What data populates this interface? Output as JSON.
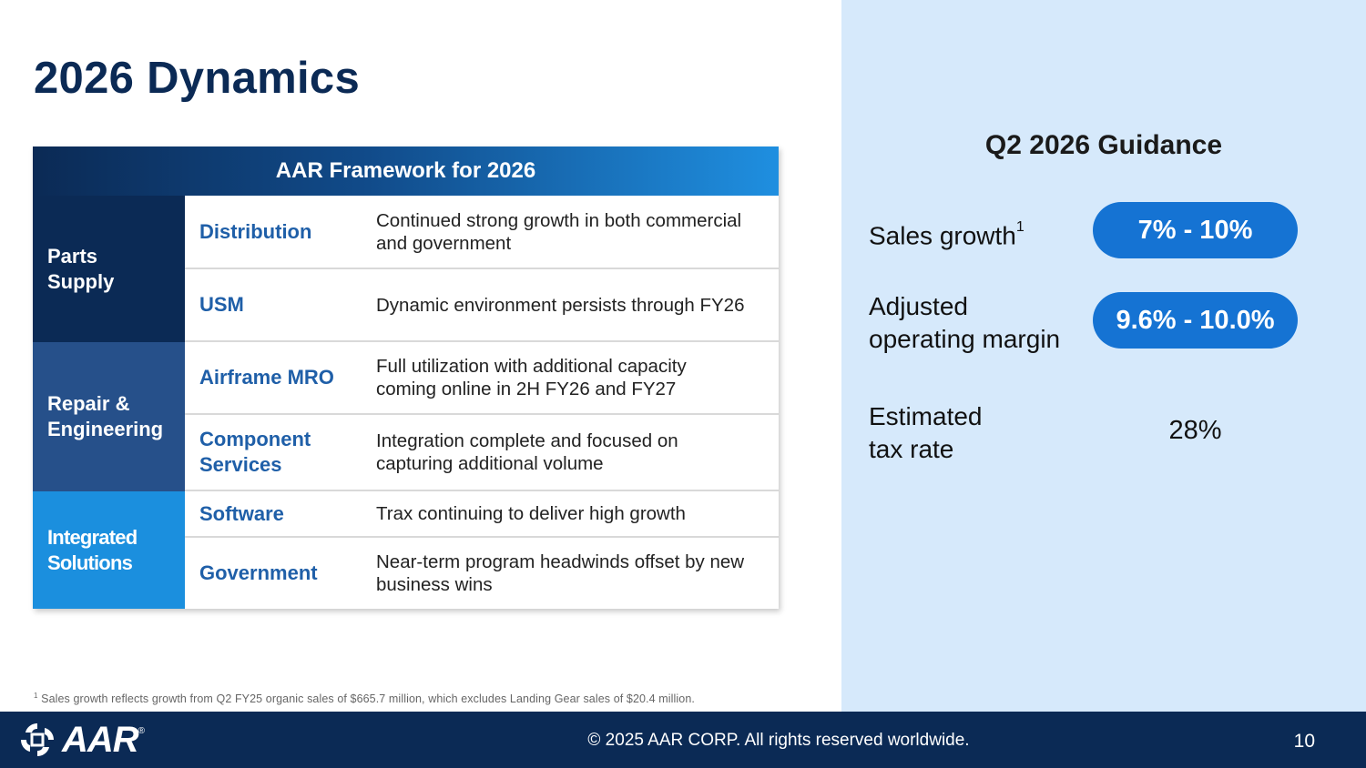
{
  "slide": {
    "title": "2026 Dynamics",
    "page_number": "10"
  },
  "framework": {
    "header": "AAR Framework for 2026",
    "groups": [
      {
        "label": "Parts Supply",
        "rows": [
          {
            "name": "Distribution",
            "description": "Continued strong growth in both commercial and government"
          },
          {
            "name": "USM",
            "description": "Dynamic environment persists through FY26"
          }
        ]
      },
      {
        "label": "Repair & Engineering",
        "rows": [
          {
            "name": "Airframe MRO",
            "description": "Full utilization with additional capacity coming online in 2H FY26 and FY27"
          },
          {
            "name": "Component Services",
            "description": "Integration complete and focused on capturing additional volume"
          }
        ]
      },
      {
        "label": "Integrated Solutions",
        "rows": [
          {
            "name": "Software",
            "description": "Trax continuing to deliver high growth"
          },
          {
            "name": "Government",
            "description": "Near-term program headwinds offset by new business wins"
          }
        ]
      }
    ]
  },
  "guidance": {
    "title": "Q2 2026 Guidance",
    "items": [
      {
        "label": "Sales growth",
        "superscript": "1",
        "value": "7% - 10%"
      },
      {
        "label": "Adjusted operating margin",
        "value": "9.6% - 10.0%"
      },
      {
        "label": "Estimated tax rate",
        "value": "28%"
      }
    ]
  },
  "footnote": {
    "marker": "1",
    "text": "Sales growth reflects growth from Q2 FY25 organic sales of $665.7 million, which excludes Landing Gear sales of $20.4 million."
  },
  "footer": {
    "logo_text": "AAR",
    "logo_registered": "®",
    "copyright": "© 2025 AAR CORP. All rights reserved worldwide."
  },
  "colors": {
    "navy": "#0b2a55",
    "mid_blue": "#26508a",
    "bright_blue": "#1b8fde",
    "pill_blue": "#1573d3",
    "panel_bg": "#d6e9fb"
  }
}
